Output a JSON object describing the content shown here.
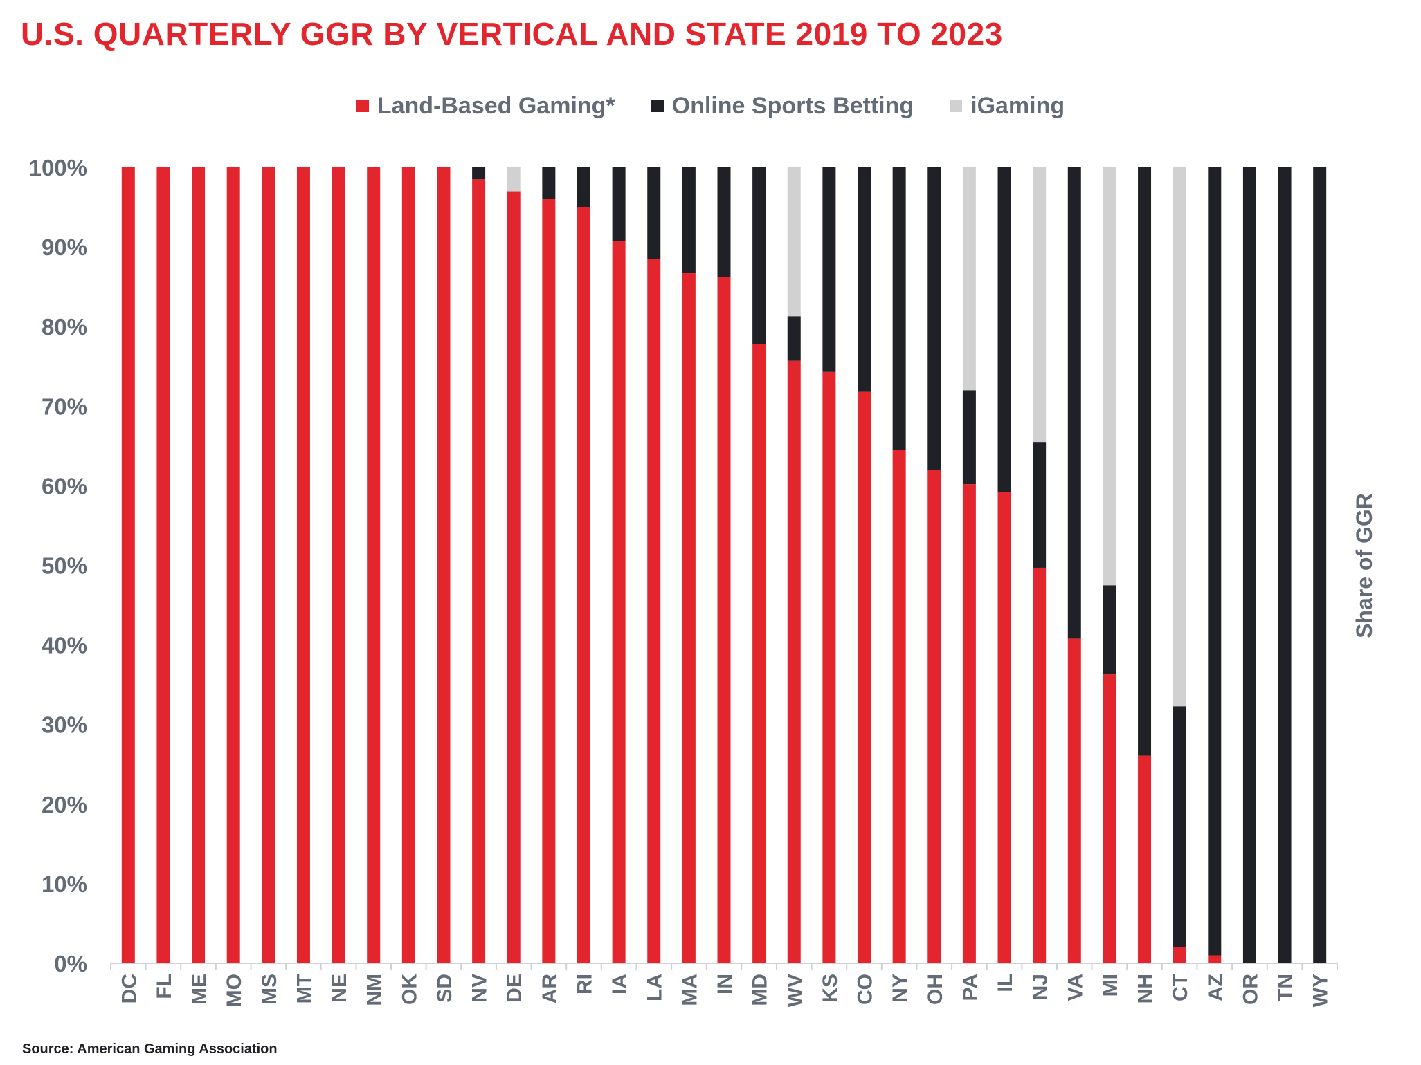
{
  "chart_data": {
    "type": "bar",
    "stacked": true,
    "title": "U.S. QUARTERLY GGR BY VERTICAL AND STATE 2019 TO 2023",
    "ylabel": "Share of GGR",
    "ylim": [
      0,
      100
    ],
    "yticks": [
      "0%",
      "10%",
      "20%",
      "30%",
      "40%",
      "50%",
      "60%",
      "70%",
      "80%",
      "90%",
      "100%"
    ],
    "legend_position": "top",
    "categories": [
      "DC",
      "FL",
      "ME",
      "MO",
      "MS",
      "MT",
      "NE",
      "NM",
      "OK",
      "SD",
      "NV",
      "DE",
      "AR",
      "RI",
      "IA",
      "LA",
      "MA",
      "IN",
      "MD",
      "WV",
      "KS",
      "CO",
      "NY",
      "OH",
      "PA",
      "IL",
      "NJ",
      "VA",
      "MI",
      "NH",
      "CT",
      "AZ",
      "OR",
      "TN",
      "WY"
    ],
    "series": [
      {
        "name": "Land-Based Gaming*",
        "color": "#e3262d",
        "values": [
          100,
          100,
          100,
          100,
          100,
          100,
          100,
          100,
          100,
          100,
          98.5,
          97,
          96,
          95,
          90.7,
          88.5,
          86.7,
          86.2,
          77.8,
          75.7,
          74.3,
          71.8,
          64.5,
          62,
          60.2,
          59.2,
          49.7,
          40.8,
          36.3,
          26.1,
          2,
          1,
          0,
          0,
          0
        ]
      },
      {
        "name": "Online Sports Betting",
        "color": "#1f2126",
        "values": [
          0,
          0,
          0,
          0,
          0,
          0,
          0,
          0,
          0,
          0,
          1.5,
          0,
          4,
          5,
          9.3,
          11.5,
          13.3,
          13.8,
          22.2,
          5.6,
          25.7,
          28.2,
          35.5,
          38,
          11.8,
          40.8,
          15.8,
          59.2,
          11.2,
          73.9,
          30.3,
          99,
          100,
          100,
          100
        ]
      },
      {
        "name": "iGaming",
        "color": "#d1d1d1",
        "values": [
          0,
          0,
          0,
          0,
          0,
          0,
          0,
          0,
          0,
          0,
          0,
          3,
          0,
          0,
          0,
          0,
          0,
          0,
          0,
          18.7,
          0,
          0,
          0,
          0,
          28,
          0,
          34.5,
          0,
          52.5,
          0,
          67.7,
          0,
          0,
          0,
          0
        ]
      }
    ]
  },
  "source": "Source: American Gaming Association"
}
